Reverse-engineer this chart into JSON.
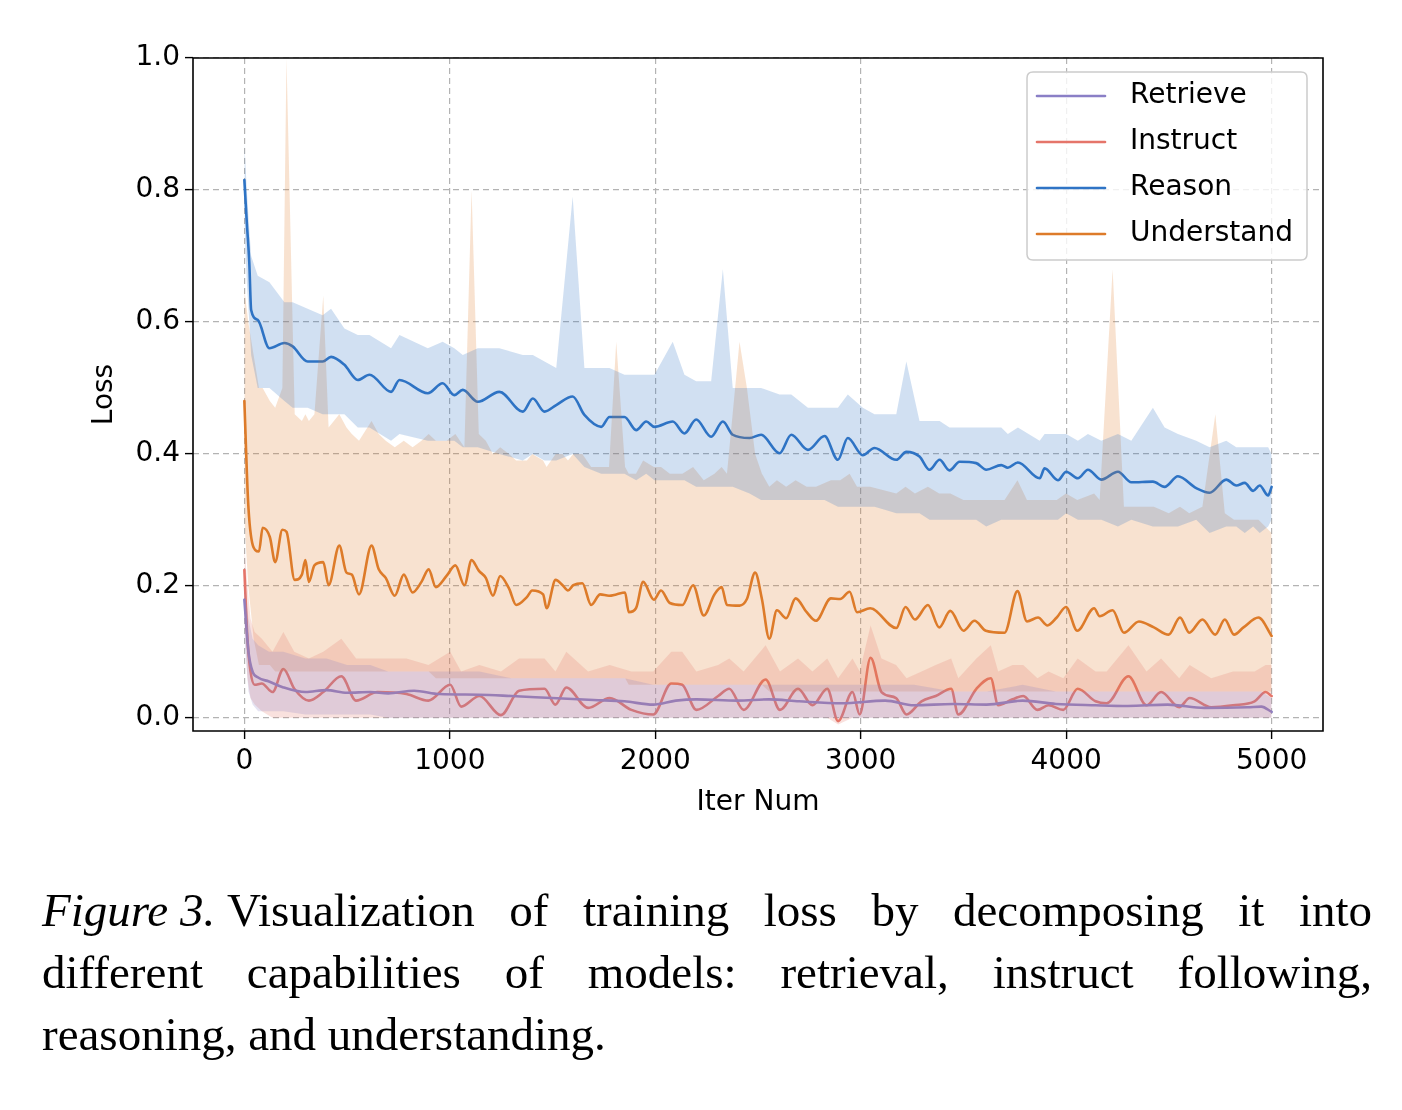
{
  "chart_data": {
    "type": "line",
    "xlabel": "Iter Num",
    "ylabel": "Loss",
    "annotations": [
      "Figure 3. Visualization of training loss by decomposing it into different capabilities of models: retrieval, instruct following, reasoning, and understanding."
    ],
    "xlim": [
      -250,
      5250
    ],
    "ylim": [
      -0.02,
      1.0
    ],
    "xticks": [
      0,
      1000,
      2000,
      3000,
      4000,
      5000
    ],
    "yticks": [
      {
        "value": 0,
        "label": "0.0"
      },
      {
        "value": 0.2,
        "label": "0.2"
      },
      {
        "value": 0.4,
        "label": "0.4"
      },
      {
        "value": 0.6,
        "label": "0.6"
      },
      {
        "value": 0.8,
        "label": "0.8"
      },
      {
        "value": 1.0,
        "label": "1.0"
      }
    ],
    "grid": true,
    "legend": "top right",
    "series": [
      {
        "name": "Retrieve",
        "color": "#8a7fc6",
        "x": [
          0,
          20,
          40,
          67,
          120,
          190,
          297,
          400,
          500,
          613,
          700,
          826,
          950,
          1144,
          1300,
          1497,
          1700,
          1850,
          1990,
          2100,
          2200,
          2400,
          2554,
          2700,
          2907,
          3119,
          3260,
          3450,
          3613,
          3788,
          3950,
          4143,
          4300,
          4494,
          4672,
          4883,
          4950,
          5000
        ],
        "values": [
          0.179,
          0.1,
          0.07,
          0.061,
          0.055,
          0.046,
          0.039,
          0.042,
          0.038,
          0.039,
          0.037,
          0.041,
          0.036,
          0.035,
          0.033,
          0.03,
          0.027,
          0.025,
          0.02,
          0.026,
          0.028,
          0.026,
          0.028,
          0.025,
          0.022,
          0.026,
          0.019,
          0.021,
          0.02,
          0.026,
          0.021,
          0.019,
          0.018,
          0.02,
          0.015,
          0.016,
          0.017,
          0.009
        ],
        "lower": [
          0.12,
          0.04,
          0.02,
          0.01,
          0.01,
          0.01,
          0.005,
          0.005,
          0.005,
          0.005,
          0,
          0,
          0,
          0,
          0,
          0,
          0,
          0,
          0,
          0,
          0,
          0,
          0,
          0,
          0,
          0,
          0,
          0,
          0,
          0,
          0,
          0,
          0,
          0,
          0,
          0,
          0,
          0
        ],
        "upper": [
          0.2,
          0.15,
          0.12,
          0.11,
          0.1,
          0.1,
          0.09,
          0.09,
          0.08,
          0.08,
          0.07,
          0.07,
          0.07,
          0.07,
          0.06,
          0.06,
          0.06,
          0.06,
          0.05,
          0.05,
          0.05,
          0.05,
          0.05,
          0.05,
          0.05,
          0.05,
          0.05,
          0.04,
          0.04,
          0.05,
          0.04,
          0.04,
          0.04,
          0.04,
          0.04,
          0.04,
          0.04,
          0.03
        ]
      },
      {
        "name": "Instruct",
        "color": "#e5756a",
        "x": [
          0,
          15,
          30,
          50,
          85,
          137,
          190,
          243,
          314,
          384,
          472,
          544,
          648,
          789,
          896,
          1002,
          1055,
          1144,
          1249,
          1337,
          1461,
          1514,
          1567,
          1673,
          1778,
          1884,
          1990,
          2078,
          2131,
          2200,
          2306,
          2360,
          2430,
          2537,
          2607,
          2695,
          2765,
          2837,
          2890,
          2960,
          2995,
          3048,
          3101,
          3172,
          3223,
          3296,
          3365,
          3440,
          3475,
          3563,
          3633,
          3669,
          3739,
          3791,
          3860,
          3914,
          3986,
          4056,
          4143,
          4197,
          4303,
          4391,
          4462,
          4550,
          4601,
          4706,
          4812,
          4917,
          4971,
          5000
        ],
        "values": [
          0.224,
          0.12,
          0.07,
          0.05,
          0.052,
          0.039,
          0.074,
          0.044,
          0.026,
          0.039,
          0.063,
          0.026,
          0.039,
          0.036,
          0.026,
          0.05,
          0.017,
          0.033,
          0.004,
          0.041,
          0.044,
          0.02,
          0.046,
          0.015,
          0.03,
          0.012,
          0.005,
          0.052,
          0.05,
          0.012,
          0.033,
          0.044,
          0.012,
          0.058,
          0.012,
          0.044,
          0.019,
          0.044,
          -0.005,
          0.039,
          0.005,
          0.091,
          0.039,
          0.03,
          0.005,
          0.025,
          0.033,
          0.044,
          0.005,
          0.044,
          0.06,
          0.019,
          0.028,
          0.033,
          0.012,
          0.019,
          0.012,
          0.044,
          0.025,
          0.022,
          0.063,
          0.019,
          0.039,
          0.016,
          0.03,
          0.016,
          0.019,
          0.025,
          0.039,
          0.033
        ],
        "lower": [
          0.15,
          0.06,
          0.03,
          0.02,
          0.01,
          0,
          0,
          0,
          0,
          0,
          0,
          0,
          0,
          0,
          0,
          0,
          0,
          0,
          0,
          0,
          0,
          0,
          0,
          0,
          0,
          0,
          0,
          0,
          0,
          0,
          0,
          0,
          0,
          0,
          0,
          0,
          0,
          0,
          -0.01,
          0,
          0,
          0,
          0,
          0,
          0,
          0,
          0,
          0,
          0,
          0,
          0,
          0,
          0,
          0,
          0,
          0,
          0,
          0,
          0,
          0,
          0,
          0,
          0,
          0,
          0,
          0,
          0,
          0,
          0,
          0
        ],
        "upper": [
          0.26,
          0.2,
          0.15,
          0.13,
          0.12,
          0.1,
          0.13,
          0.1,
          0.09,
          0.1,
          0.12,
          0.09,
          0.09,
          0.09,
          0.08,
          0.1,
          0.07,
          0.08,
          0.07,
          0.09,
          0.09,
          0.07,
          0.1,
          0.07,
          0.08,
          0.07,
          0.07,
          0.1,
          0.1,
          0.07,
          0.08,
          0.09,
          0.07,
          0.11,
          0.07,
          0.09,
          0.07,
          0.09,
          0.06,
          0.09,
          0.07,
          0.14,
          0.09,
          0.08,
          0.06,
          0.07,
          0.08,
          0.09,
          0.06,
          0.09,
          0.11,
          0.07,
          0.08,
          0.08,
          0.06,
          0.07,
          0.06,
          0.09,
          0.07,
          0.07,
          0.11,
          0.07,
          0.09,
          0.06,
          0.08,
          0.06,
          0.07,
          0.07,
          0.08,
          0.08
        ]
      },
      {
        "name": "Reason",
        "color": "#2f74c5",
        "x": [
          0,
          12,
          24,
          33,
          65,
          122,
          195,
          235,
          308,
          381,
          422,
          487,
          552,
          609,
          714,
          755,
          893,
          965,
          1022,
          1063,
          1136,
          1241,
          1355,
          1404,
          1461,
          1518,
          1598,
          1655,
          1737,
          1777,
          1850,
          1907,
          1956,
          1996,
          2085,
          2142,
          2199,
          2272,
          2329,
          2377,
          2459,
          2515,
          2605,
          2662,
          2743,
          2824,
          2889,
          2937,
          3010,
          3067,
          3173,
          3222,
          3286,
          3335,
          3384,
          3432,
          3481,
          3562,
          3611,
          3684,
          3716,
          3765,
          3871,
          3895,
          3960,
          4000,
          4057,
          4106,
          4171,
          4252,
          4317,
          4422,
          4479,
          4544,
          4633,
          4698,
          4779,
          4828,
          4869,
          4910,
          4942,
          4983,
          5000
        ],
        "values": [
          0.815,
          0.75,
          0.69,
          0.618,
          0.603,
          0.56,
          0.568,
          0.563,
          0.54,
          0.54,
          0.547,
          0.535,
          0.512,
          0.52,
          0.494,
          0.512,
          0.492,
          0.507,
          0.489,
          0.497,
          0.479,
          0.494,
          0.464,
          0.484,
          0.464,
          0.474,
          0.487,
          0.459,
          0.441,
          0.456,
          0.456,
          0.436,
          0.449,
          0.441,
          0.449,
          0.431,
          0.452,
          0.426,
          0.449,
          0.429,
          0.424,
          0.429,
          0.401,
          0.429,
          0.406,
          0.427,
          0.391,
          0.424,
          0.398,
          0.409,
          0.391,
          0.403,
          0.396,
          0.376,
          0.391,
          0.375,
          0.388,
          0.386,
          0.376,
          0.383,
          0.379,
          0.387,
          0.363,
          0.378,
          0.36,
          0.373,
          0.363,
          0.376,
          0.361,
          0.373,
          0.357,
          0.358,
          0.35,
          0.366,
          0.348,
          0.341,
          0.361,
          0.352,
          0.356,
          0.344,
          0.352,
          0.337,
          0.35
        ],
        "lower": [
          0.75,
          0.66,
          0.6,
          0.55,
          0.5,
          0.5,
          0.48,
          0.47,
          0.47,
          0.46,
          0.46,
          0.46,
          0.44,
          0.44,
          0.42,
          0.43,
          0.42,
          0.42,
          0.42,
          0.41,
          0.41,
          0.4,
          0.39,
          0.4,
          0.39,
          0.39,
          0.4,
          0.38,
          0.37,
          0.37,
          0.37,
          0.36,
          0.37,
          0.36,
          0.36,
          0.36,
          0.35,
          0.35,
          0.35,
          0.35,
          0.34,
          0.33,
          0.33,
          0.33,
          0.33,
          0.33,
          0.32,
          0.32,
          0.32,
          0.32,
          0.31,
          0.31,
          0.31,
          0.3,
          0.3,
          0.3,
          0.3,
          0.3,
          0.29,
          0.3,
          0.3,
          0.3,
          0.3,
          0.3,
          0.3,
          0.31,
          0.3,
          0.3,
          0.3,
          0.29,
          0.3,
          0.29,
          0.29,
          0.29,
          0.3,
          0.28,
          0.29,
          0.29,
          0.28,
          0.29,
          0.28,
          0.29,
          0.3
        ],
        "upper": [
          0.87,
          0.8,
          0.74,
          0.7,
          0.67,
          0.66,
          0.63,
          0.63,
          0.62,
          0.61,
          0.62,
          0.59,
          0.58,
          0.58,
          0.56,
          0.58,
          0.56,
          0.57,
          0.56,
          0.55,
          0.56,
          0.56,
          0.55,
          0.55,
          0.54,
          0.53,
          0.79,
          0.53,
          0.53,
          0.53,
          0.52,
          0.52,
          0.52,
          0.52,
          0.57,
          0.52,
          0.51,
          0.51,
          0.68,
          0.5,
          0.5,
          0.5,
          0.49,
          0.49,
          0.47,
          0.47,
          0.47,
          0.49,
          0.47,
          0.46,
          0.46,
          0.54,
          0.45,
          0.45,
          0.45,
          0.44,
          0.44,
          0.44,
          0.44,
          0.44,
          0.43,
          0.44,
          0.42,
          0.43,
          0.43,
          0.43,
          0.42,
          0.43,
          0.42,
          0.43,
          0.42,
          0.47,
          0.44,
          0.43,
          0.42,
          0.41,
          0.42,
          0.41,
          0.41,
          0.41,
          0.41,
          0.41,
          0.4
        ]
      },
      {
        "name": "Understand",
        "color": "#dd7b2a",
        "x": [
          0,
          19,
          45,
          71,
          89,
          124,
          150,
          185,
          205,
          245,
          280,
          297,
          314,
          341,
          384,
          410,
          462,
          497,
          523,
          558,
          619,
          654,
          688,
          732,
          776,
          819,
          862,
          897,
          932,
          984,
          1027,
          1071,
          1106,
          1141,
          1175,
          1210,
          1245,
          1288,
          1323,
          1375,
          1401,
          1454,
          1471,
          1515,
          1549,
          1575,
          1601,
          1645,
          1688,
          1732,
          1775,
          1810,
          1853,
          1871,
          1906,
          1941,
          1993,
          2028,
          2071,
          2132,
          2184,
          2236,
          2288,
          2323,
          2349,
          2410,
          2446,
          2486,
          2519,
          2555,
          2592,
          2637,
          2683,
          2737,
          2782,
          2855,
          2900,
          2946,
          2982,
          3046,
          3173,
          3218,
          3264,
          3327,
          3382,
          3436,
          3500,
          3554,
          3609,
          3700,
          3763,
          3809,
          3863,
          3909,
          3954,
          3999,
          4054,
          4136,
          4163,
          4226,
          4281,
          4354,
          4427,
          4499,
          4554,
          4599,
          4663,
          4726,
          4772,
          4817,
          4863,
          4936,
          5000
        ],
        "values": [
          0.48,
          0.323,
          0.258,
          0.252,
          0.288,
          0.274,
          0.236,
          0.285,
          0.282,
          0.209,
          0.217,
          0.239,
          0.206,
          0.231,
          0.236,
          0.201,
          0.261,
          0.22,
          0.217,
          0.187,
          0.261,
          0.225,
          0.212,
          0.185,
          0.217,
          0.19,
          0.206,
          0.225,
          0.198,
          0.215,
          0.231,
          0.201,
          0.239,
          0.223,
          0.212,
          0.185,
          0.215,
          0.196,
          0.171,
          0.183,
          0.193,
          0.187,
          0.166,
          0.209,
          0.201,
          0.193,
          0.201,
          0.204,
          0.171,
          0.187,
          0.185,
          0.187,
          0.19,
          0.16,
          0.166,
          0.206,
          0.179,
          0.193,
          0.174,
          0.171,
          0.201,
          0.155,
          0.187,
          0.198,
          0.171,
          0.17,
          0.18,
          0.22,
          0.18,
          0.12,
          0.163,
          0.151,
          0.181,
          0.16,
          0.147,
          0.181,
          0.18,
          0.191,
          0.16,
          0.166,
          0.136,
          0.168,
          0.149,
          0.171,
          0.137,
          0.162,
          0.132,
          0.147,
          0.132,
          0.129,
          0.192,
          0.146,
          0.152,
          0.14,
          0.152,
          0.168,
          0.132,
          0.166,
          0.154,
          0.163,
          0.129,
          0.146,
          0.137,
          0.126,
          0.152,
          0.129,
          0.149,
          0.126,
          0.149,
          0.126,
          0.137,
          0.152,
          0.124
        ],
        "lower": [
          0.3,
          0.2,
          0.12,
          0.08,
          0.08,
          0.08,
          0.07,
          0.07,
          0.07,
          0.07,
          0.07,
          0.07,
          0.07,
          0.07,
          0.07,
          0.07,
          0.07,
          0.07,
          0.07,
          0.07,
          0.07,
          0.07,
          0.07,
          0.07,
          0.07,
          0.07,
          0.07,
          0.07,
          0.06,
          0.06,
          0.06,
          0.06,
          0.06,
          0.06,
          0.06,
          0.06,
          0.06,
          0.06,
          0.06,
          0.06,
          0.06,
          0.06,
          0.06,
          0.06,
          0.06,
          0.06,
          0.06,
          0.06,
          0.06,
          0.06,
          0.06,
          0.06,
          0.06,
          0.05,
          0.05,
          0.05,
          0.05,
          0.05,
          0.05,
          0.05,
          0.05,
          0.05,
          0.05,
          0.05,
          0.05,
          0.05,
          0.05,
          0.05,
          0.05,
          0.04,
          0.04,
          0.04,
          0.04,
          0.04,
          0.04,
          0.04,
          0.04,
          0.04,
          0.04,
          0.04,
          0.04,
          0.04,
          0.04,
          0.04,
          0.04,
          0.04,
          0.04,
          0.04,
          0.04,
          0.04,
          0.04,
          0.04,
          0.04,
          0.04,
          0.04,
          0.04,
          0.04,
          0.04,
          0.04,
          0.04,
          0.04,
          0.04,
          0.04,
          0.04,
          0.04,
          0.04,
          0.04,
          0.04,
          0.04,
          0.04,
          0.04,
          0.04,
          0.04
        ],
        "upper": [
          0.65,
          0.6,
          0.55,
          0.5,
          0.5,
          0.48,
          0.47,
          0.5,
          1.0,
          0.46,
          0.45,
          0.46,
          0.45,
          0.46,
          0.64,
          0.44,
          0.46,
          0.44,
          0.43,
          0.42,
          0.45,
          0.43,
          0.42,
          0.41,
          0.42,
          0.41,
          0.42,
          0.43,
          0.42,
          0.42,
          0.43,
          0.41,
          0.8,
          0.43,
          0.42,
          0.4,
          0.41,
          0.4,
          0.39,
          0.39,
          0.4,
          0.39,
          0.38,
          0.4,
          0.4,
          0.39,
          0.4,
          0.4,
          0.38,
          0.38,
          0.38,
          0.57,
          0.38,
          0.37,
          0.37,
          0.39,
          0.38,
          0.38,
          0.37,
          0.37,
          0.38,
          0.36,
          0.37,
          0.38,
          0.37,
          0.57,
          0.5,
          0.4,
          0.37,
          0.35,
          0.36,
          0.35,
          0.36,
          0.35,
          0.35,
          0.36,
          0.36,
          0.37,
          0.35,
          0.35,
          0.34,
          0.35,
          0.34,
          0.35,
          0.34,
          0.34,
          0.33,
          0.33,
          0.33,
          0.33,
          0.36,
          0.33,
          0.33,
          0.33,
          0.33,
          0.34,
          0.33,
          0.34,
          0.33,
          0.68,
          0.32,
          0.32,
          0.32,
          0.31,
          0.32,
          0.31,
          0.32,
          0.46,
          0.31,
          0.3,
          0.3,
          0.3,
          0.28
        ]
      }
    ]
  }
}
